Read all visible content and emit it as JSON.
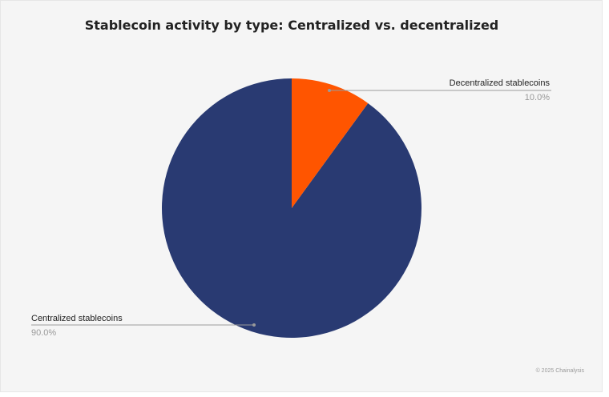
{
  "chart_data": {
    "type": "pie",
    "title": "Stablecoin activity by type: Centralized vs. decentralized",
    "slices": [
      {
        "label": "Centralized stablecoins",
        "value": 90.0,
        "value_label": "90.0%",
        "color": "#293a72"
      },
      {
        "label": "Decentralized stablecoins",
        "value": 10.0,
        "value_label": "10.0%",
        "color": "#ff5500"
      }
    ],
    "start_angle_deg": 0,
    "direction": "clockwise",
    "legend": "callout labels"
  },
  "footer": {
    "copyright": "© 2025 Chainalysis"
  }
}
